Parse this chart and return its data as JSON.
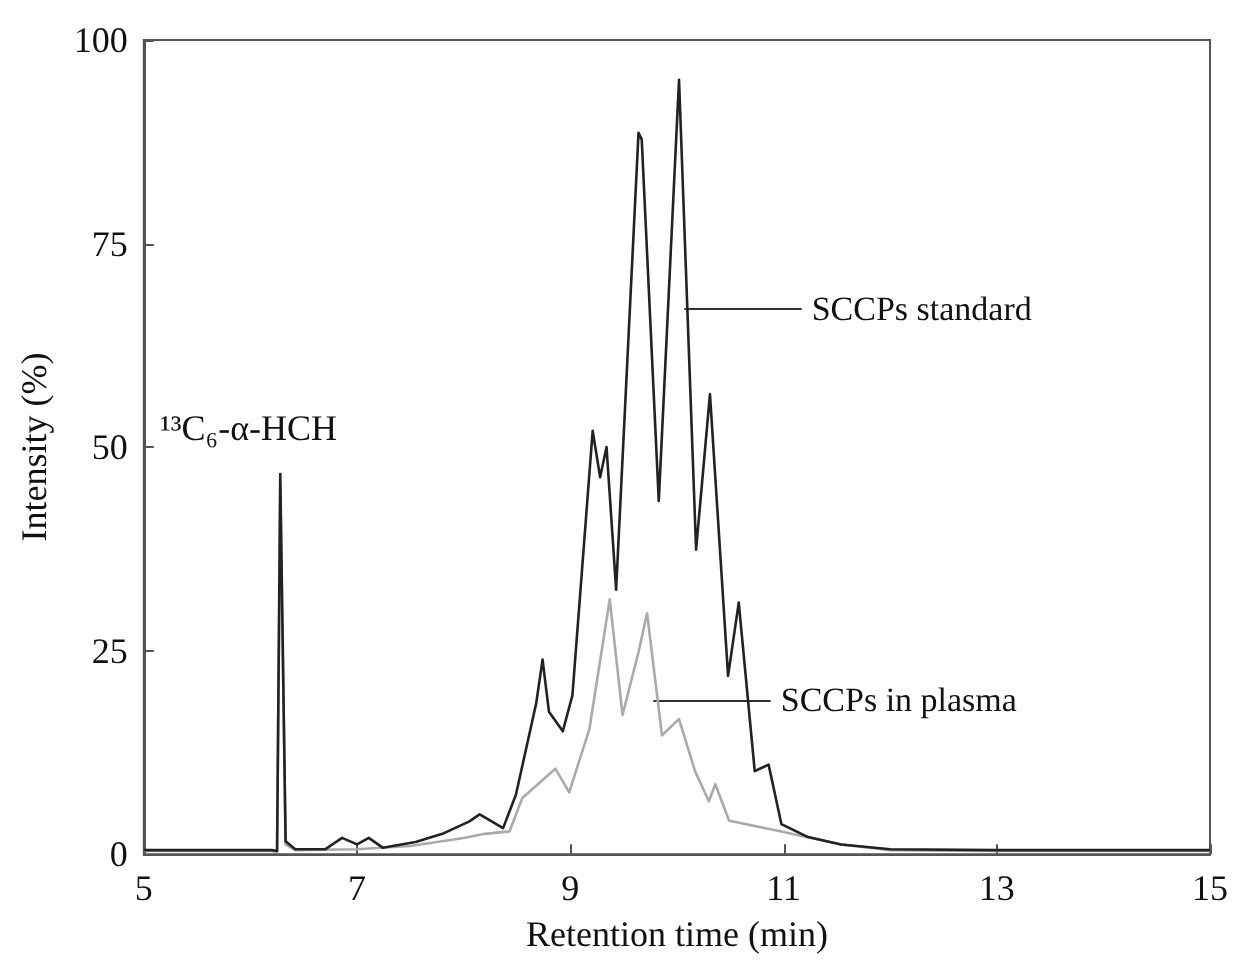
{
  "chart_data": {
    "type": "line",
    "xlabel": "Retention time (min)",
    "ylabel": "Intensity (%)",
    "xlim": [
      5,
      15
    ],
    "xticks": [
      5,
      7,
      9,
      11,
      13,
      15
    ],
    "ylim": [
      0,
      100
    ],
    "yticks": [
      0,
      25,
      50,
      75,
      100
    ],
    "grid": false,
    "marker": "none",
    "line_style": "solid",
    "annotations": [
      "¹³C₆-α-HCH",
      {
        "text": "SCCPs standard",
        "x": 10.07,
        "y": 67
      },
      {
        "text": "SCCPs in plasma",
        "x": 9.78,
        "y": 19
      }
    ],
    "series": [
      {
        "color": "#222222",
        "x": [
          5,
          6.2,
          6.25,
          6.28,
          6.33,
          6.42,
          6.7,
          6.86,
          7.0,
          7.11,
          7.24,
          7.55,
          7.8,
          8.05,
          8.15,
          8.37,
          8.49,
          8.68,
          8.74,
          8.8,
          8.93,
          9.02,
          9.21,
          9.28,
          9.34,
          9.43,
          9.64,
          9.67,
          9.83,
          10.02,
          10.18,
          10.31,
          10.48,
          10.58,
          10.73,
          10.86,
          10.98,
          11.23,
          11.54,
          12,
          13,
          14,
          15
        ],
        "values": [
          0.5,
          0.5,
          0.4,
          46.7,
          1.6,
          0.6,
          0.6,
          2.0,
          1.2,
          2.0,
          0.8,
          1.5,
          2.5,
          4.0,
          4.9,
          3.2,
          7.3,
          18.5,
          23.9,
          17.5,
          15.1,
          19.5,
          52,
          46.3,
          50,
          32.5,
          88.6,
          87.8,
          43.4,
          95.1,
          37.4,
          56.5,
          21.9,
          30.9,
          10.2,
          11,
          3.7,
          2.1,
          1.2,
          0.6,
          0.5,
          0.5,
          0.5
        ]
      },
      {
        "color": "#aaaaaa",
        "x": [
          5,
          6.2,
          6.25,
          6.28,
          6.33,
          6.42,
          7.0,
          7.5,
          8.0,
          8.2,
          8.43,
          8.55,
          8.86,
          8.99,
          9.18,
          9.37,
          9.49,
          9.64,
          9.72,
          9.86,
          10.02,
          10.17,
          10.3,
          10.36,
          10.49,
          10.98,
          11.54,
          12,
          13,
          14,
          15
        ],
        "values": [
          0.4,
          0.4,
          0.3,
          45,
          1.2,
          0.5,
          0.6,
          1,
          2,
          2.5,
          2.8,
          6.9,
          10.5,
          7.6,
          15.4,
          31.3,
          17.1,
          24.8,
          29.6,
          14.6,
          16.6,
          10.2,
          6.5,
          8.6,
          4.1,
          2.8,
          1.2,
          0.5,
          0.4,
          0.4,
          0.4
        ]
      }
    ]
  }
}
